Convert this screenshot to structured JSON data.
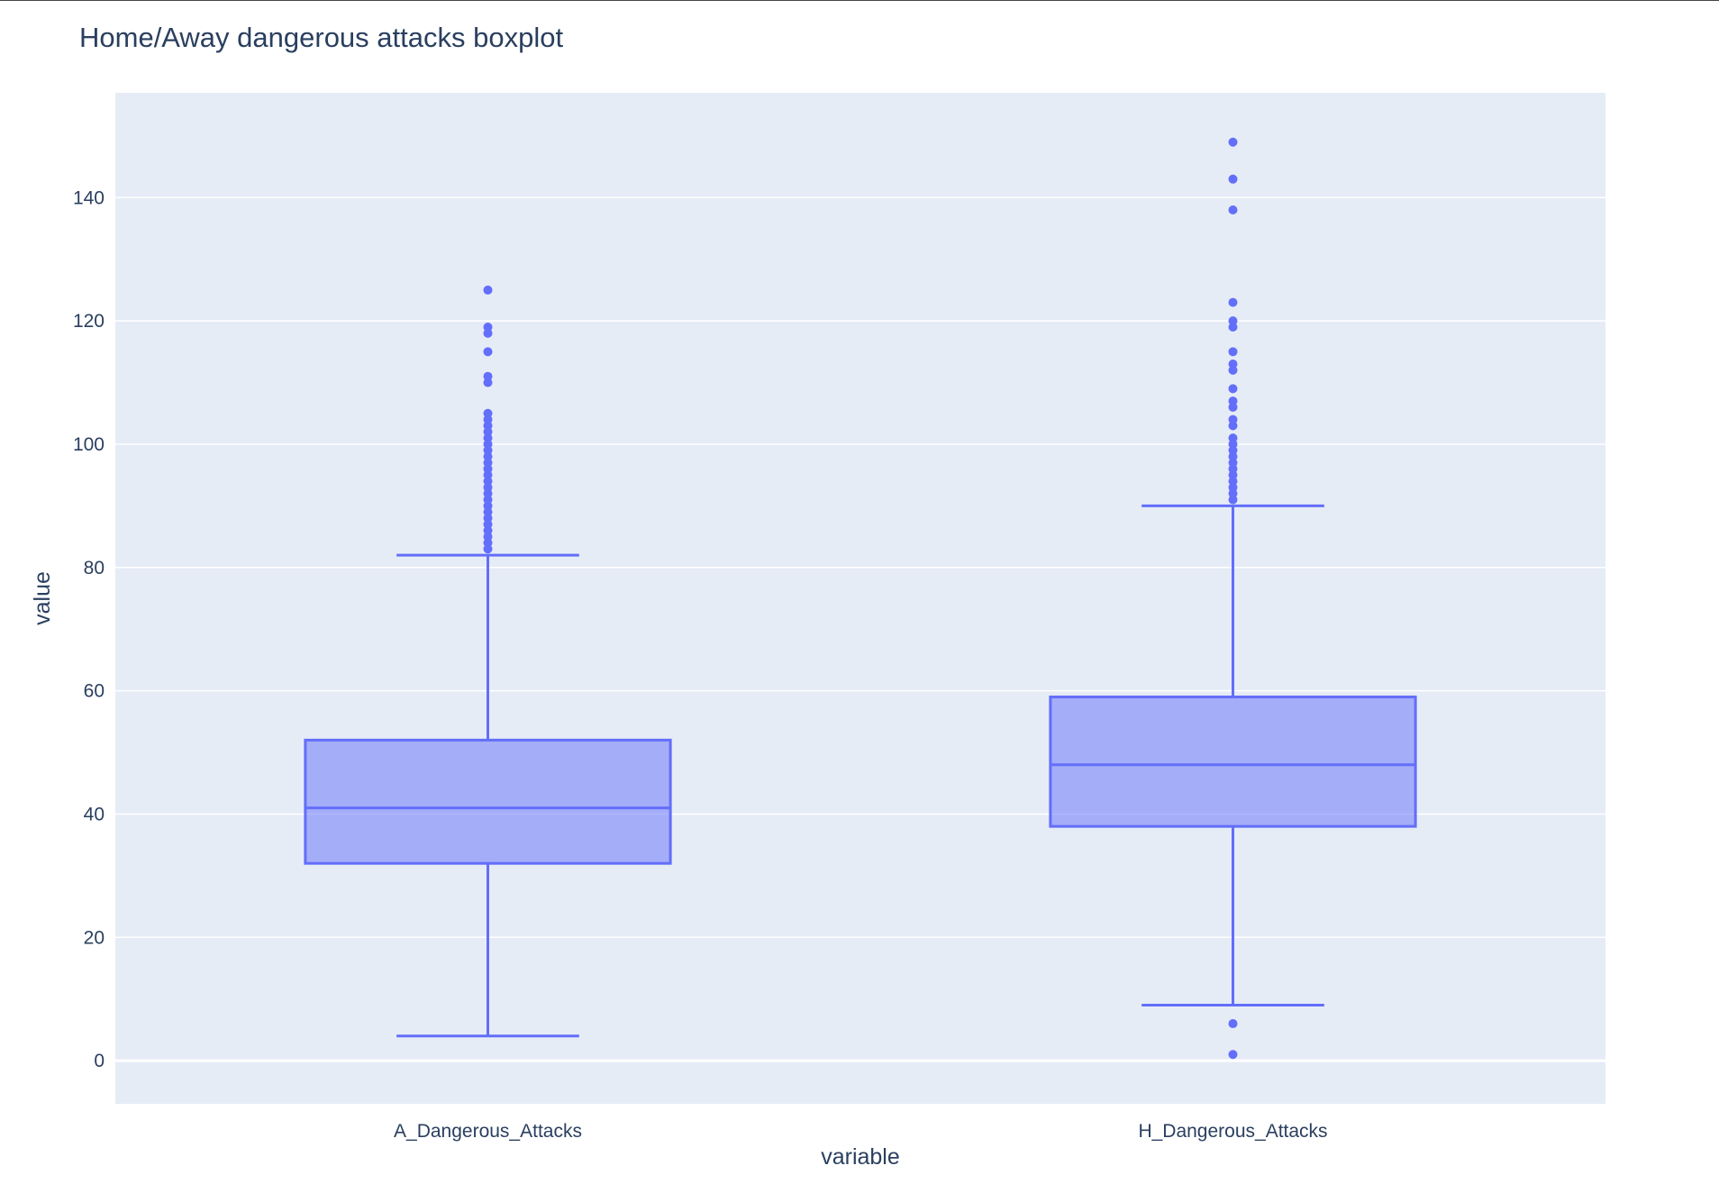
{
  "chart_data": {
    "type": "box",
    "title": "Home/Away dangerous attacks boxplot",
    "xlabel": "variable",
    "ylabel": "value",
    "ylim": [
      -7,
      157
    ],
    "yticks": [
      0,
      20,
      40,
      60,
      80,
      100,
      120,
      140
    ],
    "ytick_labels": [
      "0",
      "20",
      "40",
      "60",
      "80",
      "100",
      "120",
      "140"
    ],
    "grid": true,
    "colors": {
      "box": "#636efa",
      "plot_bg": "#e5ecf6",
      "grid": "#ffffff",
      "text": "#2a3f5f"
    },
    "categories": [
      "A_Dangerous_Attacks",
      "H_Dangerous_Attacks"
    ],
    "boxes": [
      {
        "category": "A_Dangerous_Attacks",
        "lower_fence": 4,
        "q1": 32,
        "median": 41,
        "q3": 52,
        "upper_fence": 82,
        "outliers": [
          83,
          84,
          85,
          86,
          87,
          88,
          89,
          90,
          91,
          92,
          93,
          94,
          95,
          96,
          97,
          98,
          99,
          100,
          101,
          102,
          103,
          104,
          105,
          110,
          111,
          115,
          118,
          119,
          125
        ]
      },
      {
        "category": "H_Dangerous_Attacks",
        "lower_fence": 9,
        "q1": 38,
        "median": 48,
        "q3": 59,
        "upper_fence": 90,
        "outliers": [
          1,
          6,
          91,
          92,
          93,
          94,
          95,
          96,
          97,
          98,
          99,
          100,
          101,
          103,
          104,
          106,
          107,
          109,
          112,
          113,
          115,
          119,
          120,
          123,
          138,
          143,
          149
        ]
      }
    ]
  }
}
